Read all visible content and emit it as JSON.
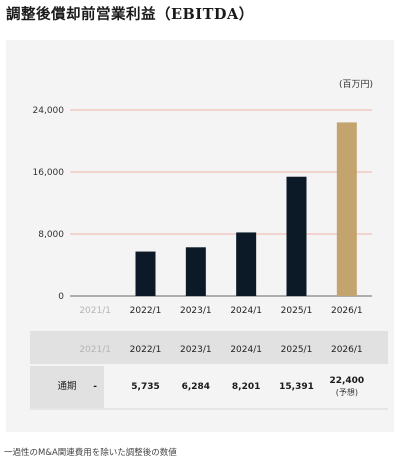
{
  "title": "調整後償却前営業利益（EBITDA）",
  "footnote": "一過性のM&A関連費用を除いた調整後の数値",
  "colors": {
    "actual": "#0c1a27",
    "forecast": "#c3a46f",
    "gridline": "#ef9c93",
    "muted": "#b5b5b5"
  },
  "chart_data": {
    "type": "bar",
    "unit_label": "(百万円)",
    "categories": [
      "2021/1",
      "2022/1",
      "2023/1",
      "2024/1",
      "2025/1",
      "2026/1"
    ],
    "values": [
      null,
      5735,
      6284,
      8201,
      15391,
      22400
    ],
    "forecast_index": 5,
    "yticks": [
      "0",
      "8,000",
      "16,000",
      "24,000"
    ],
    "ylim": [
      0,
      24000
    ],
    "grid": true
  },
  "table": {
    "header_row": [
      "2021/1",
      "2022/1",
      "2023/1",
      "2024/1",
      "2025/1",
      "2026/1"
    ],
    "row_label": "通期",
    "row_values": [
      "-",
      "5,735",
      "6,284",
      "8,201",
      "15,391",
      "22,400"
    ],
    "forecast_note": "(予想)"
  }
}
